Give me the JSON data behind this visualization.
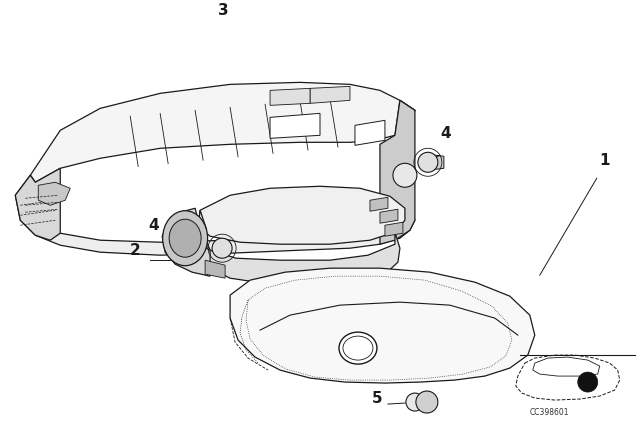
{
  "background_color": "#ffffff",
  "fig_width": 6.4,
  "fig_height": 4.48,
  "dpi": 100,
  "line_color": "#1a1a1a",
  "label_fontsize": 11,
  "code_text": "CC398601"
}
